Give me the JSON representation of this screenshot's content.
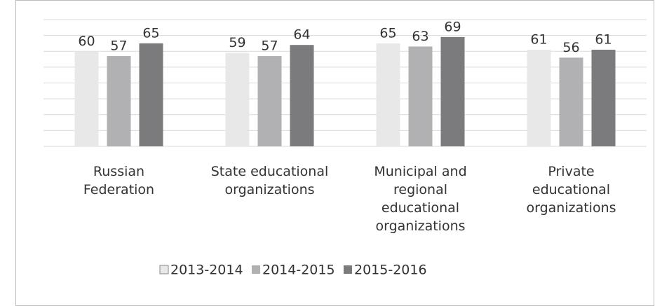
{
  "chart_data": {
    "type": "bar",
    "categories": [
      "Russian Federation",
      "State educational organizations",
      "Municipal and regional educational organizations",
      "Private educational organizations"
    ],
    "series": [
      {
        "name": "2013-2014",
        "color": "#e8e8e8",
        "values": [
          60,
          59,
          65,
          61
        ]
      },
      {
        "name": "2014-2015",
        "color": "#b1b1b3",
        "values": [
          57,
          57,
          63,
          56
        ]
      },
      {
        "name": "2015-2016",
        "color": "#7b7b7e",
        "values": [
          65,
          64,
          69,
          61
        ]
      }
    ],
    "ylim": [
      0,
      80
    ],
    "yticks": [
      0,
      10,
      20,
      30,
      40,
      50,
      60,
      70,
      80
    ],
    "grid": true,
    "legend": "bottom"
  }
}
